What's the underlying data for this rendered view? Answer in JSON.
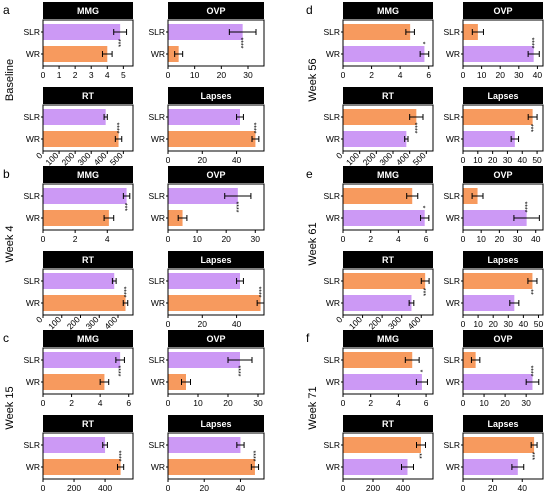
{
  "colors": {
    "orange": "#F79A5E",
    "purple": "#CC99F5",
    "strip": "#000000"
  },
  "chart_data": [
    {
      "letter": "a",
      "week": "Baseline",
      "subplots": [
        {
          "title": "MMG",
          "type": "bar",
          "categories": [
            "SLR",
            "WR"
          ],
          "values": [
            4.8,
            4.0
          ],
          "errors": [
            0.4,
            0.3
          ],
          "colors": [
            "purple",
            "orange"
          ],
          "xlim": [
            0,
            5.6
          ],
          "ticks": [
            0,
            1,
            2,
            3,
            4,
            5
          ],
          "tick_labels": [
            "0",
            "1",
            "2",
            "3",
            "4",
            "5"
          ],
          "sig": "***"
        },
        {
          "title": "OVP",
          "type": "bar",
          "categories": [
            "SLR",
            "WR"
          ],
          "values": [
            28,
            4
          ],
          "errors": [
            5,
            1.5
          ],
          "colors": [
            "purple",
            "orange"
          ],
          "xlim": [
            0,
            36
          ],
          "ticks": [
            0,
            10,
            20,
            30
          ],
          "tick_labels": [
            "0",
            "10",
            "20",
            "30"
          ],
          "sig": "****"
        },
        {
          "title": "RT",
          "type": "bar",
          "categories": [
            "SLR",
            "WR"
          ],
          "values": [
            390,
            470
          ],
          "errors": [
            10,
            20
          ],
          "colors": [
            "purple",
            "orange"
          ],
          "xlim": [
            0,
            560
          ],
          "ticks": [
            0,
            100,
            200,
            300,
            400,
            500
          ],
          "tick_labels": [
            "0",
            "100",
            "200",
            "300",
            "400",
            "500"
          ],
          "sig": "****",
          "rot": true
        },
        {
          "title": "Lapses",
          "type": "bar",
          "categories": [
            "SLR",
            "WR"
          ],
          "values": [
            42,
            51
          ],
          "errors": [
            2,
            2
          ],
          "colors": [
            "purple",
            "orange"
          ],
          "xlim": [
            0,
            56
          ],
          "ticks": [
            0,
            20,
            40
          ],
          "tick_labels": [
            "0",
            "20",
            "40"
          ],
          "sig": "****"
        }
      ]
    },
    {
      "letter": "b",
      "week": "Week 4",
      "subplots": [
        {
          "title": "MMG",
          "type": "bar",
          "categories": [
            "SLR",
            "WR"
          ],
          "values": [
            5.2,
            4.1
          ],
          "errors": [
            0.2,
            0.3
          ],
          "colors": [
            "purple",
            "orange"
          ],
          "xlim": [
            0,
            5.6
          ],
          "ticks": [
            0,
            2,
            4
          ],
          "tick_labels": [
            "0",
            "2",
            "4"
          ],
          "sig": "***"
        },
        {
          "title": "OVP",
          "type": "bar",
          "categories": [
            "SLR",
            "WR"
          ],
          "values": [
            24,
            5
          ],
          "errors": [
            4.5,
            1.5
          ],
          "colors": [
            "purple",
            "orange"
          ],
          "xlim": [
            0,
            33
          ],
          "ticks": [
            0,
            10,
            20,
            30
          ],
          "tick_labels": [
            "0",
            "10",
            "20",
            "30"
          ],
          "sig": "****"
        },
        {
          "title": "RT",
          "type": "bar",
          "categories": [
            "SLR",
            "WR"
          ],
          "values": [
            380,
            440
          ],
          "errors": [
            10,
            12
          ],
          "colors": [
            "purple",
            "orange"
          ],
          "xlim": [
            0,
            480
          ],
          "ticks": [
            0,
            100,
            200,
            300,
            400
          ],
          "tick_labels": [
            "0",
            "100",
            "200",
            "300",
            "400"
          ],
          "sig": "****",
          "rot": true
        },
        {
          "title": "Lapses",
          "type": "bar",
          "categories": [
            "SLR",
            "WR"
          ],
          "values": [
            42,
            54
          ],
          "errors": [
            2,
            2
          ],
          "colors": [
            "purple",
            "orange"
          ],
          "xlim": [
            0,
            56
          ],
          "ticks": [
            0,
            20,
            40
          ],
          "tick_labels": [
            "0",
            "20",
            "40"
          ],
          "sig": "****"
        }
      ]
    },
    {
      "letter": "c",
      "week": "Week 15",
      "subplots": [
        {
          "title": "MMG",
          "type": "bar",
          "categories": [
            "SLR",
            "WR"
          ],
          "values": [
            5.4,
            4.3
          ],
          "errors": [
            0.3,
            0.3
          ],
          "colors": [
            "purple",
            "orange"
          ],
          "xlim": [
            0,
            6.3
          ],
          "ticks": [
            0,
            2,
            4,
            6
          ],
          "tick_labels": [
            "0",
            "2",
            "4",
            "6"
          ],
          "sig": "****"
        },
        {
          "title": "OVP",
          "type": "bar",
          "categories": [
            "SLR",
            "WR"
          ],
          "values": [
            24,
            6
          ],
          "errors": [
            4,
            1.5
          ],
          "colors": [
            "purple",
            "orange"
          ],
          "xlim": [
            0,
            32
          ],
          "ticks": [
            0,
            10,
            20,
            30
          ],
          "tick_labels": [
            "0",
            "10",
            "20",
            "30"
          ],
          "sig": "****"
        },
        {
          "title": "RT",
          "type": "bar",
          "categories": [
            "SLR",
            "WR"
          ],
          "values": [
            400,
            500
          ],
          "errors": [
            15,
            20
          ],
          "colors": [
            "purple",
            "orange"
          ],
          "xlim": [
            0,
            580
          ],
          "ticks": [
            0,
            200,
            400
          ],
          "tick_labels": [
            "0",
            "200",
            "400"
          ],
          "sig": "****"
        },
        {
          "title": "Lapses",
          "type": "bar",
          "categories": [
            "SLR",
            "WR"
          ],
          "values": [
            40,
            48
          ],
          "errors": [
            2,
            2
          ],
          "colors": [
            "purple",
            "orange"
          ],
          "xlim": [
            0,
            53
          ],
          "ticks": [
            0,
            20,
            40
          ],
          "tick_labels": [
            "0",
            "20",
            "40"
          ],
          "sig": "****"
        }
      ]
    },
    {
      "letter": "d",
      "week": "Week 56",
      "subplots": [
        {
          "title": "MMG",
          "type": "bar",
          "categories": [
            "SLR",
            "WR"
          ],
          "values": [
            4.7,
            5.7
          ],
          "errors": [
            0.3,
            0.3
          ],
          "colors": [
            "orange",
            "purple"
          ],
          "xlim": [
            0,
            6.3
          ],
          "ticks": [
            0,
            2,
            4,
            6
          ],
          "tick_labels": [
            "0",
            "2",
            "4",
            "6"
          ],
          "sig": "*"
        },
        {
          "title": "OVP",
          "type": "bar",
          "categories": [
            "SLR",
            "WR"
          ],
          "values": [
            8,
            38
          ],
          "errors": [
            3,
            3
          ],
          "colors": [
            "orange",
            "purple"
          ],
          "xlim": [
            0,
            43
          ],
          "ticks": [
            0,
            10,
            20,
            30,
            40
          ],
          "tick_labels": [
            "0",
            "10",
            "20",
            "30",
            "40"
          ],
          "sig": "****"
        },
        {
          "title": "RT",
          "type": "bar",
          "categories": [
            "SLR",
            "WR"
          ],
          "values": [
            440,
            380
          ],
          "errors": [
            40,
            10
          ],
          "colors": [
            "orange",
            "purple"
          ],
          "xlim": [
            0,
            540
          ],
          "ticks": [
            0,
            100,
            200,
            300,
            400,
            500
          ],
          "tick_labels": [
            "0",
            "100",
            "200",
            "300",
            "400",
            "500"
          ],
          "sig": "****",
          "rot": true
        },
        {
          "title": "Lapses",
          "type": "bar",
          "categories": [
            "SLR",
            "WR"
          ],
          "values": [
            47,
            35
          ],
          "errors": [
            3,
            2.5
          ],
          "colors": [
            "orange",
            "purple"
          ],
          "xlim": [
            0,
            54
          ],
          "ticks": [
            0,
            10,
            20,
            30,
            40,
            50
          ],
          "tick_labels": [
            "0",
            "10",
            "20",
            "30",
            "40",
            "50"
          ],
          "sig": "***"
        }
      ]
    },
    {
      "letter": "e",
      "week": "Week 61",
      "subplots": [
        {
          "title": "MMG",
          "type": "bar",
          "categories": [
            "SLR",
            "WR"
          ],
          "values": [
            5.0,
            5.9
          ],
          "errors": [
            0.4,
            0.3
          ],
          "colors": [
            "orange",
            "purple"
          ],
          "xlim": [
            0,
            6.5
          ],
          "ticks": [
            0,
            2,
            4,
            6
          ],
          "tick_labels": [
            "0",
            "2",
            "4",
            "6"
          ],
          "sig": "*"
        },
        {
          "title": "OVP",
          "type": "bar",
          "categories": [
            "SLR",
            "WR"
          ],
          "values": [
            8,
            35
          ],
          "errors": [
            3,
            7
          ],
          "colors": [
            "orange",
            "purple"
          ],
          "xlim": [
            0,
            44
          ],
          "ticks": [
            0,
            10,
            20,
            30,
            40
          ],
          "tick_labels": [
            "0",
            "10",
            "20",
            "30",
            "40"
          ],
          "sig": "****"
        },
        {
          "title": "RT",
          "type": "bar",
          "categories": [
            "SLR",
            "WR"
          ],
          "values": [
            420,
            350
          ],
          "errors": [
            20,
            12
          ],
          "colors": [
            "orange",
            "purple"
          ],
          "xlim": [
            0,
            460
          ],
          "ticks": [
            0,
            100,
            200,
            300,
            400
          ],
          "tick_labels": [
            "0",
            "100",
            "200",
            "300",
            "400"
          ],
          "sig": "***",
          "rot": true
        },
        {
          "title": "Lapses",
          "type": "bar",
          "categories": [
            "SLR",
            "WR"
          ],
          "values": [
            46,
            34
          ],
          "errors": [
            3,
            3
          ],
          "colors": [
            "orange",
            "purple"
          ],
          "xlim": [
            0,
            53
          ],
          "ticks": [
            0,
            10,
            20,
            30,
            40,
            50
          ],
          "tick_labels": [
            "0",
            "10",
            "20",
            "30",
            "40",
            "50"
          ],
          "sig": "**"
        }
      ]
    },
    {
      "letter": "f",
      "week": "Week 71",
      "subplots": [
        {
          "title": "MMG",
          "type": "bar",
          "categories": [
            "SLR",
            "WR"
          ],
          "values": [
            5.0,
            5.7
          ],
          "errors": [
            0.5,
            0.4
          ],
          "colors": [
            "orange",
            "purple"
          ],
          "xlim": [
            0,
            6.5
          ],
          "ticks": [
            0,
            2,
            4,
            6
          ],
          "tick_labels": [
            "0",
            "2",
            "4",
            "6"
          ],
          "sig": "*"
        },
        {
          "title": "OVP",
          "type": "bar",
          "categories": [
            "SLR",
            "WR"
          ],
          "values": [
            6,
            33
          ],
          "errors": [
            2,
            3
          ],
          "colors": [
            "orange",
            "purple"
          ],
          "xlim": [
            0,
            38
          ],
          "ticks": [
            0,
            10,
            20,
            30
          ],
          "tick_labels": [
            "0",
            "10",
            "20",
            "30"
          ],
          "sig": "****"
        },
        {
          "title": "RT",
          "type": "bar",
          "categories": [
            "SLR",
            "WR"
          ],
          "values": [
            520,
            430
          ],
          "errors": [
            30,
            40
          ],
          "colors": [
            "orange",
            "purple"
          ],
          "xlim": [
            0,
            600
          ],
          "ticks": [
            0,
            200,
            400
          ],
          "tick_labels": [
            "0",
            "200",
            "400"
          ],
          "sig": "**"
        },
        {
          "title": "Lapses",
          "type": "bar",
          "categories": [
            "SLR",
            "WR"
          ],
          "values": [
            48,
            37
          ],
          "errors": [
            2,
            4
          ],
          "colors": [
            "orange",
            "purple"
          ],
          "xlim": [
            0,
            54
          ],
          "ticks": [
            0,
            20,
            40
          ],
          "tick_labels": [
            "0",
            "20",
            "40"
          ],
          "sig": "***"
        }
      ]
    }
  ]
}
